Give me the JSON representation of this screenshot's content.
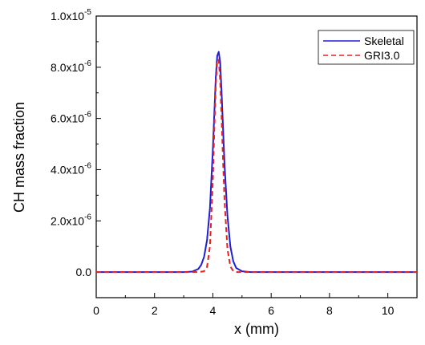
{
  "chart_data": {
    "type": "line",
    "xlabel": "x (mm)",
    "ylabel": "CH mass fraction",
    "xlim": [
      0,
      11
    ],
    "ylim": [
      -1e-06,
      1e-05
    ],
    "x_ticks": [
      {
        "value": 0,
        "label": "0"
      },
      {
        "value": 2,
        "label": "2"
      },
      {
        "value": 4,
        "label": "4"
      },
      {
        "value": 6,
        "label": "6"
      },
      {
        "value": 8,
        "label": "8"
      },
      {
        "value": 10,
        "label": "10"
      }
    ],
    "y_ticks": [
      {
        "value": 0,
        "label": "0.0"
      },
      {
        "value": 2e-06,
        "mantissa": "2.0x10",
        "exponent": "-6"
      },
      {
        "value": 4e-06,
        "mantissa": "4.0x10",
        "exponent": "-6"
      },
      {
        "value": 6e-06,
        "mantissa": "6.0x10",
        "exponent": "-6"
      },
      {
        "value": 8e-06,
        "mantissa": "8.0x10",
        "exponent": "-6"
      },
      {
        "value": 1e-05,
        "mantissa": "1.0x10",
        "exponent": "-5"
      }
    ],
    "grid": false,
    "legend_position": "top-right",
    "series": [
      {
        "name": "Skeletal",
        "color": "#1f1fd6",
        "style": "solid",
        "x": [
          0,
          2,
          3.0,
          3.3,
          3.5,
          3.6,
          3.7,
          3.8,
          3.9,
          4.0,
          4.05,
          4.1,
          4.15,
          4.2,
          4.25,
          4.3,
          4.35,
          4.4,
          4.5,
          4.6,
          4.7,
          4.8,
          5.0,
          5.3,
          6,
          8,
          11
        ],
        "y": [
          0,
          0,
          0,
          2e-08,
          1.2e-07,
          2.8e-07,
          6e-07,
          1.25e-06,
          2.5e-06,
          4.8e-06,
          6.2e-06,
          7.6e-06,
          8.45e-06,
          8.6e-06,
          8.2e-06,
          7e-06,
          5.6e-06,
          4.2e-06,
          2.2e-06,
          1e-06,
          4.2e-07,
          1.6e-07,
          3e-08,
          0,
          0,
          0,
          0
        ]
      },
      {
        "name": "GRI3.0",
        "color": "#e8211b",
        "style": "dashed",
        "x": [
          0,
          2,
          3.5,
          3.7,
          3.8,
          3.9,
          4.0,
          4.05,
          4.1,
          4.15,
          4.2,
          4.25,
          4.3,
          4.35,
          4.4,
          4.5,
          4.6,
          4.7,
          4.8,
          5.0,
          6,
          8,
          11
        ],
        "y": [
          0,
          0,
          0,
          3e-08,
          2e-07,
          1e-06,
          3.6e-06,
          5.6e-06,
          7.3e-06,
          8.25e-06,
          8.3e-06,
          7.5e-06,
          6e-06,
          4.3e-06,
          2.8e-06,
          9e-07,
          2.2e-07,
          4e-08,
          0,
          0,
          0,
          0,
          0
        ]
      }
    ]
  }
}
